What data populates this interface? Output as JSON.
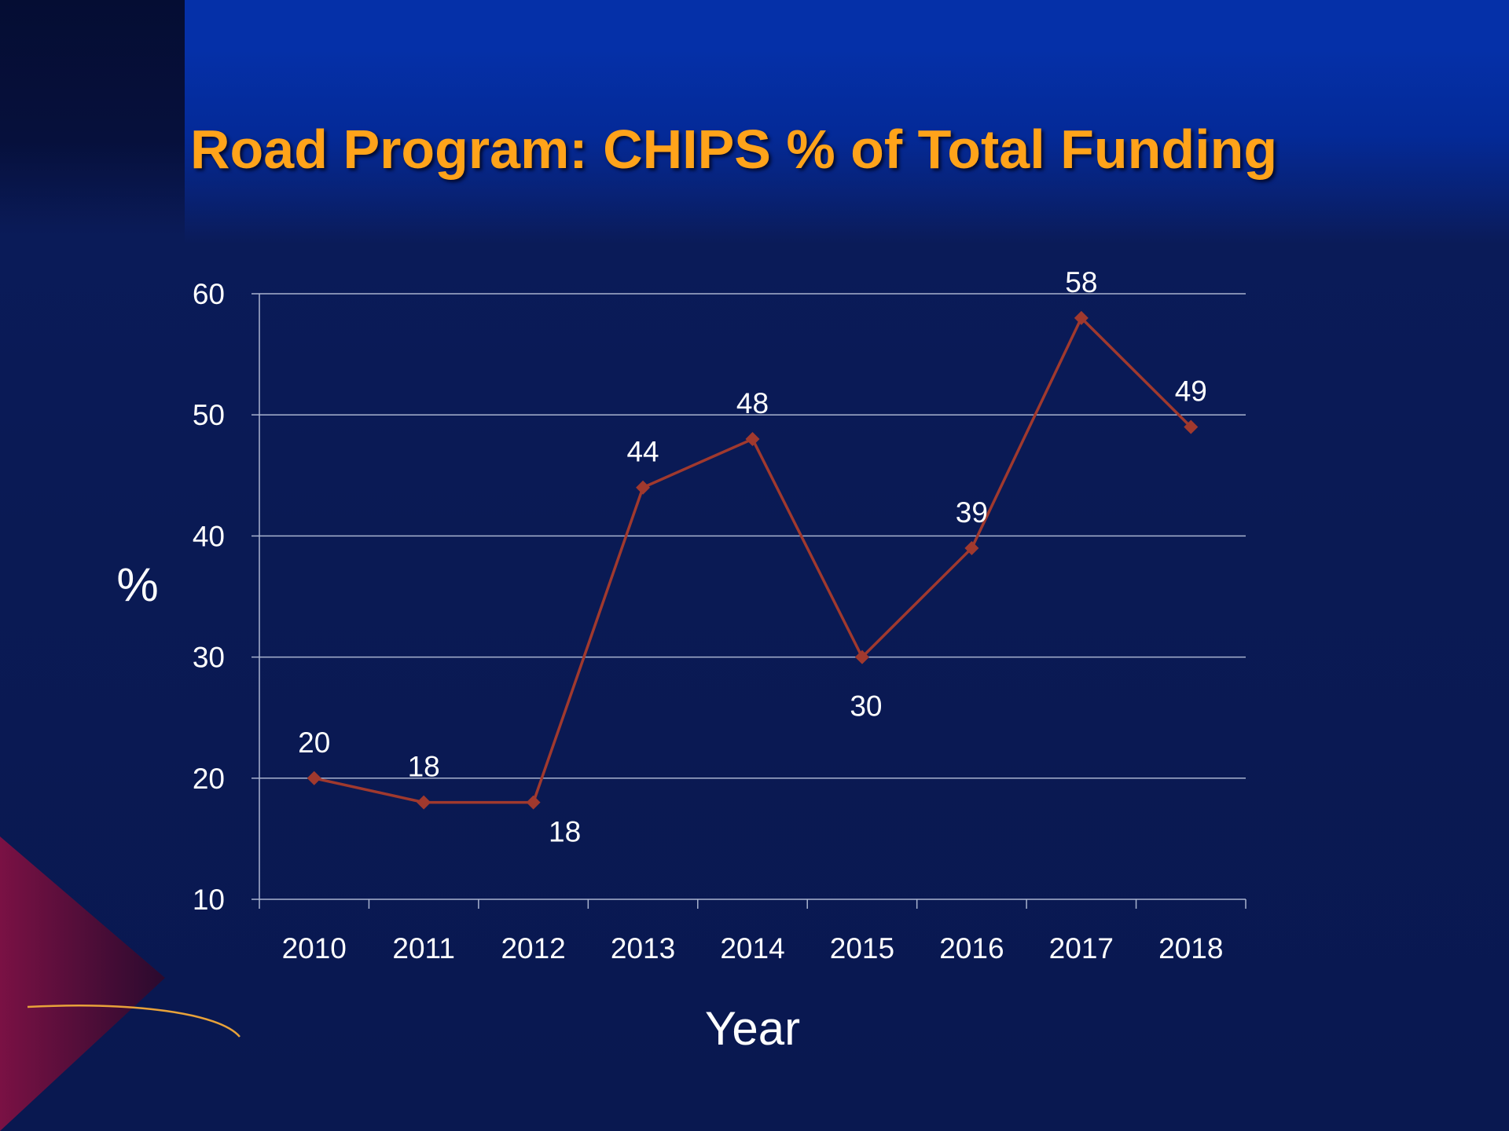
{
  "slide": {
    "title": "Road Program: CHIPS % of Total Funding"
  },
  "chart_data": {
    "type": "line",
    "title": "Road Program: CHIPS % of Total Funding",
    "xlabel": "Year",
    "ylabel": "%",
    "categories": [
      "2010",
      "2011",
      "2012",
      "2013",
      "2014",
      "2015",
      "2016",
      "2017",
      "2018"
    ],
    "series": [
      {
        "values": [
          20,
          18,
          18,
          44,
          48,
          30,
          39,
          58,
          49
        ],
        "color": "#a0392e"
      }
    ],
    "data_labels": [
      "20",
      "18",
      "18",
      "44",
      "48",
      "30",
      "39",
      "58",
      "49"
    ],
    "ylim": [
      10,
      60
    ],
    "yticks": [
      10,
      20,
      30,
      40,
      50,
      60
    ],
    "grid": true,
    "legend": "none"
  },
  "colors": {
    "title": "#ffa31a",
    "background": "#0a1a55",
    "gridline": "#a9b3cf",
    "series": "#a0392e",
    "text": "#ffffff"
  }
}
